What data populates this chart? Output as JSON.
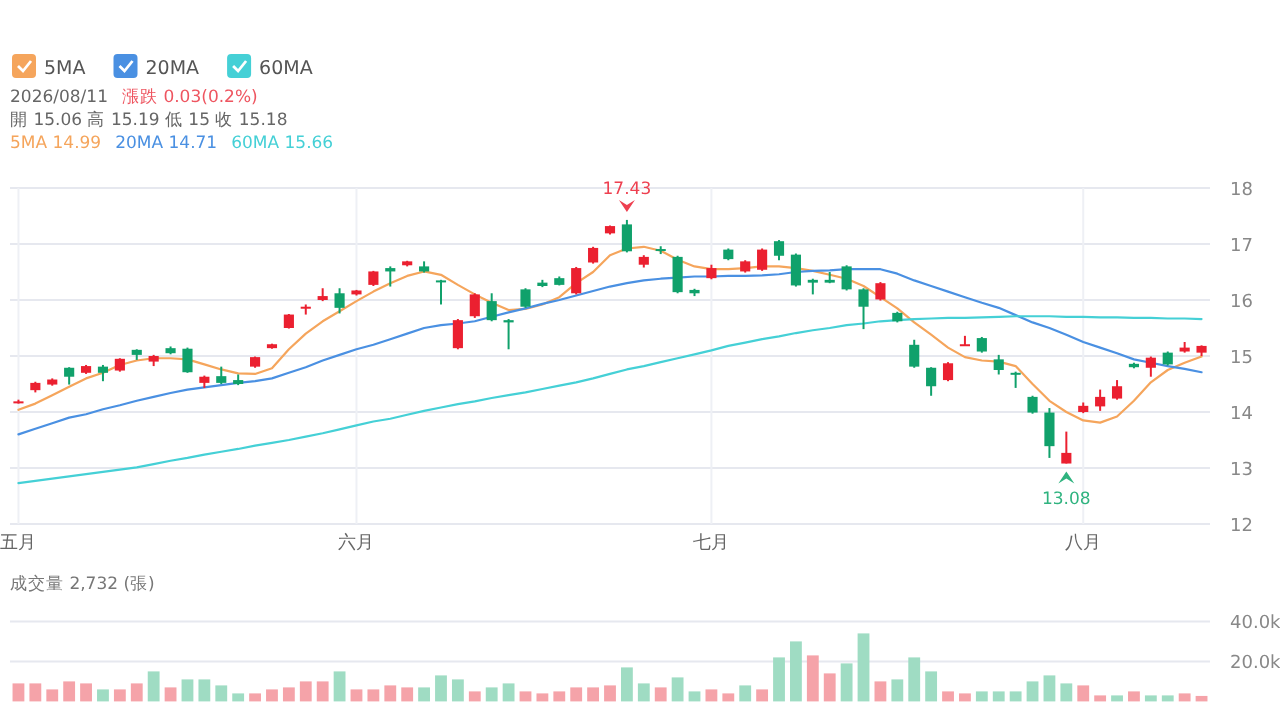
{
  "chart_data": [
    {
      "type": "candlestick",
      "legend": "top left",
      "grid": true,
      "tick_labels": "xy",
      "ylim": [
        12,
        18
      ],
      "yticks": [
        12,
        13,
        14,
        15,
        16,
        17,
        18
      ],
      "annotations": [
        "2026/08/11",
        "漲跌 0.03(0.2%)",
        "開 15.06 高 15.19 低 15 收 15.18",
        "5MA 14.99",
        "20MA 14.71",
        "60MA 15.66",
        {
          "text": "17.43",
          "y": 17.43
        },
        {
          "text": "13.08",
          "y": 13.08
        }
      ],
      "categories": [
        "五月",
        null,
        null,
        null,
        null,
        null,
        null,
        null,
        null,
        null,
        null,
        null,
        null,
        null,
        null,
        null,
        null,
        null,
        null,
        null,
        "六月",
        null,
        null,
        null,
        null,
        null,
        null,
        null,
        null,
        null,
        null,
        null,
        null,
        null,
        null,
        null,
        null,
        null,
        null,
        null,
        null,
        "七月",
        null,
        null,
        null,
        null,
        null,
        null,
        null,
        null,
        null,
        null,
        null,
        null,
        null,
        null,
        null,
        null,
        null,
        null,
        null,
        null,
        null,
        "八月",
        null,
        null,
        null,
        null,
        null,
        null,
        null
      ],
      "ohlc": [
        [
          14.17,
          14.22,
          14.15,
          14.19
        ],
        [
          14.39,
          14.54,
          14.35,
          14.52
        ],
        [
          14.49,
          14.6,
          14.47,
          14.58
        ],
        [
          14.79,
          14.8,
          14.49,
          14.63
        ],
        [
          14.7,
          14.84,
          14.68,
          14.82
        ],
        [
          14.81,
          14.84,
          14.55,
          14.7
        ],
        [
          14.74,
          14.96,
          14.72,
          14.95
        ],
        [
          15.11,
          15.12,
          14.93,
          15.02
        ],
        [
          14.9,
          15.02,
          14.82,
          15.0
        ],
        [
          15.14,
          15.17,
          15.03,
          15.05
        ],
        [
          15.13,
          15.15,
          14.7,
          14.71
        ],
        [
          14.52,
          14.65,
          14.43,
          14.63
        ],
        [
          14.64,
          14.81,
          14.5,
          14.52
        ],
        [
          14.57,
          14.67,
          14.48,
          14.5
        ],
        [
          14.81,
          14.99,
          14.79,
          14.98
        ],
        [
          15.14,
          15.22,
          15.13,
          15.21
        ],
        [
          15.5,
          15.75,
          15.49,
          15.74
        ],
        [
          15.86,
          15.92,
          15.74,
          15.88
        ],
        [
          16.0,
          16.21,
          15.98,
          16.07
        ],
        [
          16.12,
          16.21,
          15.76,
          15.86
        ],
        [
          16.1,
          16.18,
          16.08,
          16.17
        ],
        [
          16.27,
          16.52,
          16.25,
          16.51
        ],
        [
          16.57,
          16.6,
          16.24,
          16.51
        ],
        [
          16.62,
          16.7,
          16.6,
          16.69
        ],
        [
          16.6,
          16.69,
          16.49,
          16.51
        ],
        [
          16.35,
          16.36,
          15.92,
          16.33
        ],
        [
          15.14,
          15.66,
          15.12,
          15.64
        ],
        [
          15.71,
          16.12,
          15.68,
          16.1
        ],
        [
          15.98,
          16.12,
          15.62,
          15.64
        ],
        [
          15.64,
          15.66,
          15.12,
          15.6
        ],
        [
          16.19,
          16.21,
          15.86,
          15.88
        ],
        [
          16.31,
          16.36,
          16.23,
          16.25
        ],
        [
          16.39,
          16.42,
          16.26,
          16.27
        ],
        [
          16.12,
          16.59,
          16.1,
          16.57
        ],
        [
          16.67,
          16.95,
          16.65,
          16.93
        ],
        [
          17.19,
          17.33,
          17.17,
          17.32
        ],
        [
          17.35,
          17.43,
          16.85,
          16.87
        ],
        [
          16.63,
          16.8,
          16.58,
          16.77
        ],
        [
          16.91,
          16.96,
          16.82,
          16.88
        ],
        [
          16.77,
          16.79,
          16.12,
          16.14
        ],
        [
          16.18,
          16.2,
          16.07,
          16.12
        ],
        [
          16.39,
          16.63,
          16.37,
          16.57
        ],
        [
          16.9,
          16.92,
          16.71,
          16.73
        ],
        [
          16.51,
          16.71,
          16.49,
          16.69
        ],
        [
          16.54,
          16.92,
          16.52,
          16.9
        ],
        [
          17.05,
          17.07,
          16.71,
          16.79
        ],
        [
          16.81,
          16.83,
          16.24,
          16.26
        ],
        [
          16.36,
          16.38,
          16.1,
          16.31
        ],
        [
          16.36,
          16.5,
          16.3,
          16.31
        ],
        [
          16.6,
          16.62,
          16.17,
          16.19
        ],
        [
          16.19,
          16.21,
          15.48,
          15.88
        ],
        [
          16.01,
          16.32,
          15.99,
          16.3
        ],
        [
          15.77,
          15.79,
          15.6,
          15.62
        ],
        [
          15.2,
          15.29,
          14.79,
          14.81
        ],
        [
          14.79,
          14.8,
          14.29,
          14.46
        ],
        [
          14.57,
          14.89,
          14.55,
          14.87
        ],
        [
          15.19,
          15.36,
          15.18,
          15.21
        ],
        [
          15.32,
          15.34,
          15.06,
          15.08
        ],
        [
          14.94,
          15.02,
          14.67,
          14.75
        ],
        [
          14.7,
          14.72,
          14.43,
          14.67
        ],
        [
          14.27,
          14.29,
          13.97,
          13.99
        ],
        [
          13.99,
          14.07,
          13.18,
          13.39
        ],
        [
          13.08,
          13.65,
          13.08,
          13.27
        ],
        [
          14.0,
          14.17,
          13.98,
          14.11
        ],
        [
          14.1,
          14.4,
          14.02,
          14.27
        ],
        [
          14.24,
          14.57,
          14.22,
          14.46
        ],
        [
          14.86,
          14.88,
          14.78,
          14.8
        ],
        [
          14.79,
          14.99,
          14.63,
          14.97
        ],
        [
          15.06,
          15.08,
          14.83,
          14.85
        ],
        [
          15.08,
          15.25,
          15.06,
          15.15
        ],
        [
          15.06,
          15.19,
          15.0,
          15.18
        ]
      ],
      "colors": [
        "#eb2030",
        "#eb2030",
        "#eb2030",
        "#10a16b",
        "#eb2030",
        "#10a16b",
        "#eb2030",
        "#10a16b",
        "#eb2030",
        "#10a16b",
        "#10a16b",
        "#eb2030",
        "#10a16b",
        "#10a16b",
        "#eb2030",
        "#eb2030",
        "#eb2030",
        "#eb2030",
        "#eb2030",
        "#10a16b",
        "#eb2030",
        "#eb2030",
        "#10a16b",
        "#eb2030",
        "#10a16b",
        "#10a16b",
        "#eb2030",
        "#eb2030",
        "#10a16b",
        "#10a16b",
        "#10a16b",
        "#10a16b",
        "#10a16b",
        "#eb2030",
        "#eb2030",
        "#eb2030",
        "#10a16b",
        "#eb2030",
        "#10a16b",
        "#10a16b",
        "#10a16b",
        "#eb2030",
        "#10a16b",
        "#eb2030",
        "#eb2030",
        "#10a16b",
        "#10a16b",
        "#10a16b",
        "#10a16b",
        "#10a16b",
        "#10a16b",
        "#eb2030",
        "#10a16b",
        "#10a16b",
        "#10a16b",
        "#eb2030",
        "#eb2030",
        "#10a16b",
        "#10a16b",
        "#10a16b",
        "#10a16b",
        "#10a16b",
        "#eb2030",
        "#eb2030",
        "#eb2030",
        "#eb2030",
        "#10a16b",
        "#eb2030",
        "#10a16b",
        "#eb2030",
        "#eb2030"
      ],
      "series": [
        {
          "name": "5MA",
          "type": "line",
          "color": "#f5a55c",
          "values": [
            14.04,
            14.15,
            14.3,
            14.45,
            14.6,
            14.7,
            14.84,
            14.92,
            14.96,
            14.96,
            14.94,
            14.85,
            14.76,
            14.69,
            14.68,
            14.78,
            15.12,
            15.4,
            15.62,
            15.8,
            15.98,
            16.15,
            16.3,
            16.43,
            16.51,
            16.45,
            16.27,
            16.1,
            15.95,
            15.82,
            15.84,
            15.92,
            16.05,
            16.3,
            16.5,
            16.8,
            16.92,
            16.95,
            16.88,
            16.72,
            16.6,
            16.55,
            16.55,
            16.57,
            16.6,
            16.6,
            16.57,
            16.52,
            16.45,
            16.38,
            16.25,
            16.05,
            15.85,
            15.6,
            15.38,
            15.15,
            14.98,
            14.92,
            14.9,
            14.82,
            14.5,
            14.2,
            14.0,
            13.85,
            13.81,
            13.92,
            14.2,
            14.53,
            14.75,
            14.88,
            14.99
          ]
        },
        {
          "name": "20MA",
          "type": "line",
          "color": "#4a90e2",
          "values": [
            13.6,
            13.7,
            13.8,
            13.9,
            13.96,
            14.05,
            14.12,
            14.2,
            14.27,
            14.34,
            14.4,
            14.44,
            14.48,
            14.52,
            14.55,
            14.6,
            14.7,
            14.8,
            14.92,
            15.02,
            15.12,
            15.2,
            15.3,
            15.4,
            15.5,
            15.55,
            15.58,
            15.62,
            15.7,
            15.78,
            15.85,
            15.93,
            16.0,
            16.08,
            16.16,
            16.24,
            16.3,
            16.35,
            16.38,
            16.4,
            16.42,
            16.42,
            16.43,
            16.43,
            16.44,
            16.46,
            16.5,
            16.52,
            16.53,
            16.55,
            16.55,
            16.55,
            16.47,
            16.35,
            16.25,
            16.15,
            16.05,
            15.95,
            15.86,
            15.73,
            15.6,
            15.5,
            15.38,
            15.25,
            15.15,
            15.05,
            14.94,
            14.88,
            14.82,
            14.77,
            14.71
          ]
        },
        {
          "name": "60MA",
          "type": "line",
          "color": "#45d0d6",
          "values": [
            12.73,
            12.77,
            12.81,
            12.85,
            12.89,
            12.93,
            12.97,
            13.01,
            13.07,
            13.13,
            13.18,
            13.24,
            13.29,
            13.34,
            13.4,
            13.45,
            13.5,
            13.56,
            13.62,
            13.69,
            13.76,
            13.83,
            13.88,
            13.95,
            14.02,
            14.08,
            14.14,
            14.19,
            14.25,
            14.3,
            14.35,
            14.41,
            14.47,
            14.53,
            14.6,
            14.68,
            14.76,
            14.82,
            14.89,
            14.96,
            15.03,
            15.1,
            15.18,
            15.24,
            15.3,
            15.35,
            15.41,
            15.46,
            15.5,
            15.55,
            15.58,
            15.62,
            15.64,
            15.66,
            15.67,
            15.68,
            15.68,
            15.69,
            15.7,
            15.71,
            15.71,
            15.71,
            15.7,
            15.7,
            15.69,
            15.69,
            15.68,
            15.68,
            15.67,
            15.67,
            15.66
          ]
        }
      ]
    },
    {
      "type": "bar",
      "title": "成交量 2,732 (張)",
      "grid": "y",
      "tick_labels": "y",
      "ylim": [
        0,
        40000
      ],
      "yticks": [
        {
          "value": 20000,
          "label": "20.0k"
        },
        {
          "value": 40000,
          "label": "40.0k"
        }
      ],
      "categories": [
        null,
        null,
        null,
        null,
        null,
        null,
        null,
        null,
        null,
        null,
        null,
        null,
        null,
        null,
        null,
        null,
        null,
        null,
        null,
        null,
        null,
        null,
        null,
        null,
        null,
        null,
        null,
        null,
        null,
        null,
        null,
        null,
        null,
        null,
        null,
        null,
        null,
        null,
        null,
        null,
        null,
        null,
        null,
        null,
        null,
        null,
        null,
        null,
        null,
        null,
        null,
        null,
        null,
        null,
        null,
        null,
        null,
        null,
        null,
        null,
        null,
        null,
        null,
        null,
        null,
        null,
        null,
        null,
        null,
        null,
        null
      ],
      "values": [
        9000,
        9000,
        6000,
        10000,
        9000,
        6000,
        6000,
        9000,
        15000,
        7000,
        11000,
        11000,
        8000,
        4000,
        4000,
        6000,
        7000,
        10000,
        10000,
        15000,
        6000,
        6000,
        8000,
        7000,
        7000,
        13000,
        11000,
        5000,
        7000,
        9000,
        5000,
        4000,
        5000,
        7000,
        7000,
        8000,
        17000,
        9000,
        7000,
        12000,
        5000,
        6000,
        4000,
        8000,
        6000,
        22000,
        30000,
        23000,
        14000,
        19000,
        34000,
        10000,
        11000,
        22000,
        15000,
        5000,
        4000,
        5000,
        5000,
        5000,
        10000,
        13000,
        9000,
        8000,
        3000,
        3000,
        5000,
        3000,
        3000,
        4000,
        2732
      ],
      "colors": [
        "#f5a3a9",
        "#f5a3a9",
        "#f5a3a9",
        "#f5a3a9",
        "#f5a3a9",
        "#9fdcc3",
        "#f5a3a9",
        "#f5a3a9",
        "#9fdcc3",
        "#f5a3a9",
        "#9fdcc3",
        "#9fdcc3",
        "#9fdcc3",
        "#9fdcc3",
        "#f5a3a9",
        "#f5a3a9",
        "#f5a3a9",
        "#f5a3a9",
        "#f5a3a9",
        "#9fdcc3",
        "#f5a3a9",
        "#f5a3a9",
        "#f5a3a9",
        "#f5a3a9",
        "#9fdcc3",
        "#9fdcc3",
        "#9fdcc3",
        "#f5a3a9",
        "#9fdcc3",
        "#9fdcc3",
        "#f5a3a9",
        "#f5a3a9",
        "#f5a3a9",
        "#f5a3a9",
        "#f5a3a9",
        "#f5a3a9",
        "#9fdcc3",
        "#9fdcc3",
        "#f5a3a9",
        "#9fdcc3",
        "#9fdcc3",
        "#f5a3a9",
        "#f5a3a9",
        "#9fdcc3",
        "#f5a3a9",
        "#9fdcc3",
        "#9fdcc3",
        "#f5a3a9",
        "#f5a3a9",
        "#9fdcc3",
        "#9fdcc3",
        "#f5a3a9",
        "#9fdcc3",
        "#9fdcc3",
        "#9fdcc3",
        "#f5a3a9",
        "#f5a3a9",
        "#9fdcc3",
        "#9fdcc3",
        "#9fdcc3",
        "#9fdcc3",
        "#9fdcc3",
        "#9fdcc3",
        "#f5a3a9",
        "#f5a3a9",
        "#9fdcc3",
        "#f5a3a9",
        "#9fdcc3",
        "#9fdcc3",
        "#f5a3a9",
        "#f5a3a9"
      ]
    }
  ]
}
